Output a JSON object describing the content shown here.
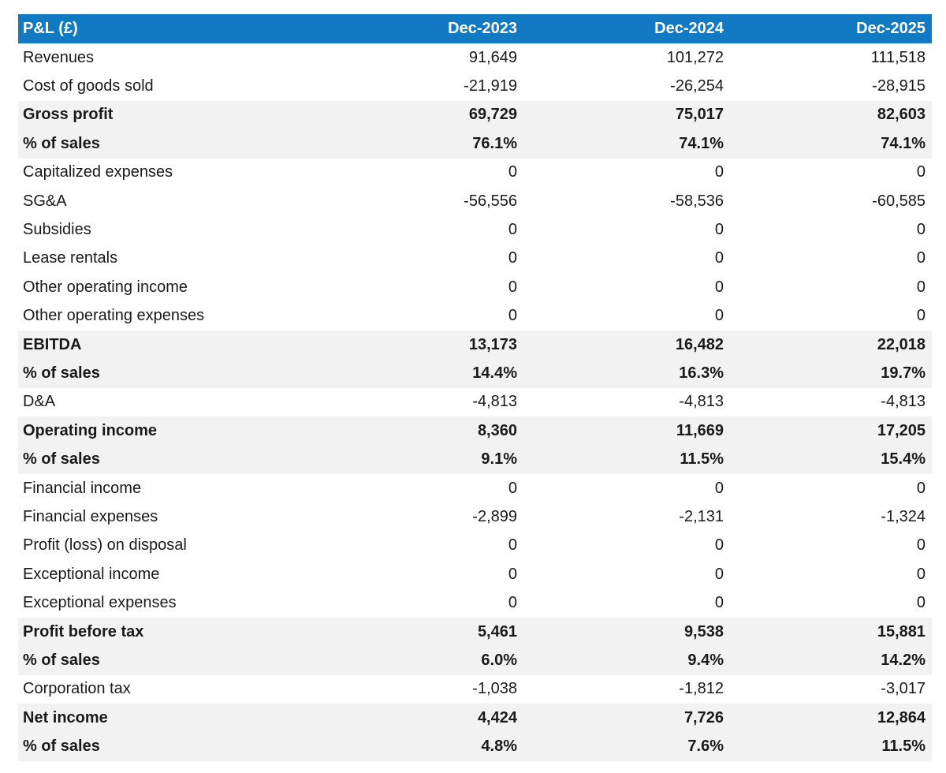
{
  "header": {
    "label": "P&L (£)",
    "columns": [
      "Dec-2023",
      "Dec-2024",
      "Dec-2025"
    ]
  },
  "rows": [
    {
      "label": "Revenues",
      "values": [
        "91,649",
        "101,272",
        "111,518"
      ],
      "bold": false,
      "shaded": false
    },
    {
      "label": "Cost of goods sold",
      "values": [
        "-21,919",
        "-26,254",
        "-28,915"
      ],
      "bold": false,
      "shaded": false
    },
    {
      "label": "Gross profit",
      "values": [
        "69,729",
        "75,017",
        "82,603"
      ],
      "bold": true,
      "shaded": true
    },
    {
      "label": "% of sales",
      "values": [
        "76.1%",
        "74.1%",
        "74.1%"
      ],
      "bold": true,
      "shaded": true
    },
    {
      "label": "Capitalized expenses",
      "values": [
        "0",
        "0",
        "0"
      ],
      "bold": false,
      "shaded": false
    },
    {
      "label": "SG&A",
      "values": [
        "-56,556",
        "-58,536",
        "-60,585"
      ],
      "bold": false,
      "shaded": false
    },
    {
      "label": "Subsidies",
      "values": [
        "0",
        "0",
        "0"
      ],
      "bold": false,
      "shaded": false
    },
    {
      "label": "Lease rentals",
      "values": [
        "0",
        "0",
        "0"
      ],
      "bold": false,
      "shaded": false
    },
    {
      "label": "Other operating income",
      "values": [
        "0",
        "0",
        "0"
      ],
      "bold": false,
      "shaded": false
    },
    {
      "label": "Other operating expenses",
      "values": [
        "0",
        "0",
        "0"
      ],
      "bold": false,
      "shaded": false
    },
    {
      "label": "EBITDA",
      "values": [
        "13,173",
        "16,482",
        "22,018"
      ],
      "bold": true,
      "shaded": true
    },
    {
      "label": "% of sales",
      "values": [
        "14.4%",
        "16.3%",
        "19.7%"
      ],
      "bold": true,
      "shaded": true
    },
    {
      "label": "D&A",
      "values": [
        "-4,813",
        "-4,813",
        "-4,813"
      ],
      "bold": false,
      "shaded": false
    },
    {
      "label": "Operating income",
      "values": [
        "8,360",
        "11,669",
        "17,205"
      ],
      "bold": true,
      "shaded": true
    },
    {
      "label": "% of sales",
      "values": [
        "9.1%",
        "11.5%",
        "15.4%"
      ],
      "bold": true,
      "shaded": true
    },
    {
      "label": "Financial income",
      "values": [
        "0",
        "0",
        "0"
      ],
      "bold": false,
      "shaded": false
    },
    {
      "label": "Financial expenses",
      "values": [
        "-2,899",
        "-2,131",
        "-1,324"
      ],
      "bold": false,
      "shaded": false
    },
    {
      "label": "Profit (loss) on disposal",
      "values": [
        "0",
        "0",
        "0"
      ],
      "bold": false,
      "shaded": false
    },
    {
      "label": "Exceptional income",
      "values": [
        "0",
        "0",
        "0"
      ],
      "bold": false,
      "shaded": false
    },
    {
      "label": "Exceptional expenses",
      "values": [
        "0",
        "0",
        "0"
      ],
      "bold": false,
      "shaded": false
    },
    {
      "label": "Profit before tax",
      "values": [
        "5,461",
        "9,538",
        "15,881"
      ],
      "bold": true,
      "shaded": true
    },
    {
      "label": "% of sales",
      "values": [
        "6.0%",
        "9.4%",
        "14.2%"
      ],
      "bold": true,
      "shaded": true
    },
    {
      "label": "Corporation tax",
      "values": [
        "-1,038",
        "-1,812",
        "-3,017"
      ],
      "bold": false,
      "shaded": false
    },
    {
      "label": "Net income",
      "values": [
        "4,424",
        "7,726",
        "12,864"
      ],
      "bold": true,
      "shaded": true
    },
    {
      "label": "% of sales",
      "values": [
        "4.8%",
        "7.6%",
        "11.5%"
      ],
      "bold": true,
      "shaded": true
    }
  ],
  "colors": {
    "header_bg": "#1279c3",
    "header_text": "#ffffff",
    "shaded_row_bg": "#f2f2f2"
  }
}
